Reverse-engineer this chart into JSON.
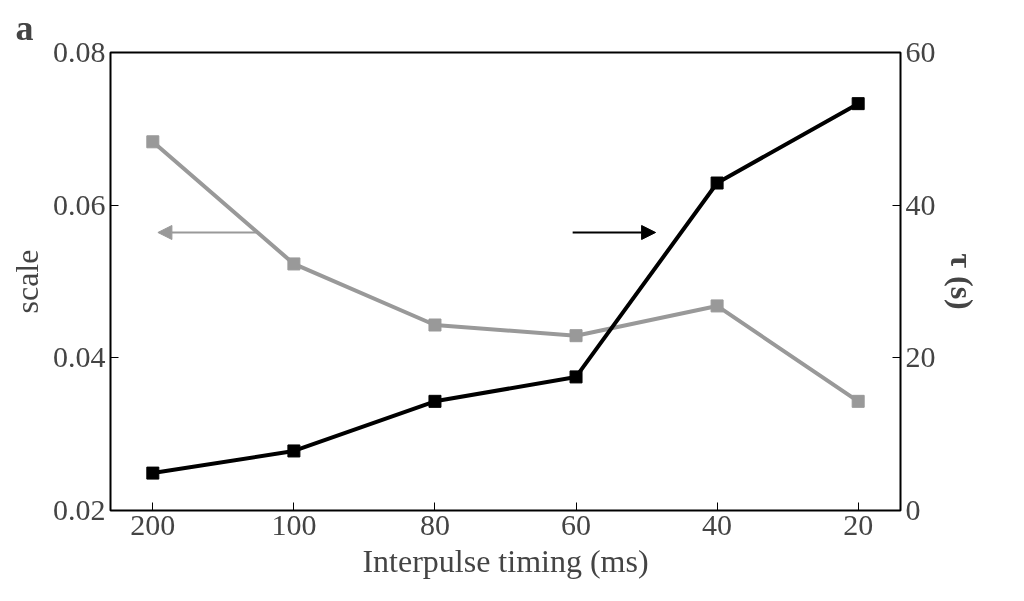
{
  "chart_data": {
    "type": "line",
    "annotations": [
      "a"
    ],
    "xlabel": "Interpulse timing (ms)",
    "ylabel": "scale",
    "y2label": "τ (s)",
    "categories": [
      "200",
      "100",
      "80",
      "60",
      "40",
      "20"
    ],
    "series": [
      {
        "color": "#999999",
        "values": [
          0.0683,
          0.0523,
          0.0443,
          0.0429,
          0.0468,
          0.0343
        ]
      },
      {
        "color": "#000000",
        "axis": "y2",
        "values": [
          4.9,
          7.8,
          14.3,
          17.5,
          42.9,
          53.3
        ]
      }
    ],
    "ylim": [
      0.02,
      0.08
    ],
    "yticks": [
      0.02,
      0.04,
      0.06,
      0.08
    ],
    "y2lim": [
      0,
      60
    ],
    "y2ticks": [
      0,
      20,
      40,
      60
    ],
    "grid": false,
    "marker": "square",
    "line_style": "solid"
  }
}
